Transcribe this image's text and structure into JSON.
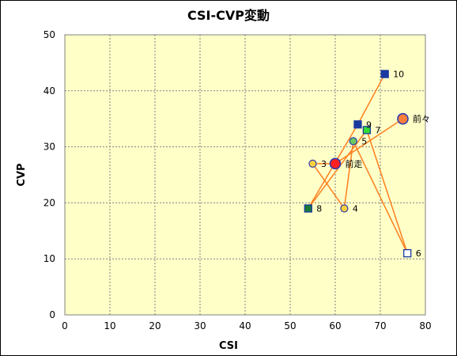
{
  "chart_data": {
    "type": "scatter",
    "title": "CSI-CVP変動",
    "xlabel": "CSI",
    "ylabel": "CVP",
    "xlim": [
      0,
      80
    ],
    "ylim": [
      0,
      50
    ],
    "xticks": [
      0,
      10,
      20,
      30,
      40,
      50,
      60,
      70,
      80
    ],
    "yticks": [
      0,
      10,
      20,
      30,
      40,
      50
    ],
    "grid": true,
    "plot_background": "#ffffc8",
    "line_color": "#ff7f1e",
    "points": [
      {
        "label": "前々",
        "x": 75,
        "y": 35,
        "marker": "circle",
        "fill": "#ff7f3c",
        "stroke": "#2c3cb4",
        "size": "large"
      },
      {
        "label": "前走",
        "x": 60,
        "y": 27,
        "marker": "circle",
        "fill": "#ff2020",
        "stroke": "#2c3cb4",
        "size": "large"
      },
      {
        "label": "3",
        "x": 55,
        "y": 27,
        "marker": "circle",
        "fill": "#ffd23c",
        "stroke": "#2c3cb4",
        "size": "small"
      },
      {
        "label": "4",
        "x": 62,
        "y": 19,
        "marker": "circle",
        "fill": "#ffd23c",
        "stroke": "#2c3cb4",
        "size": "small"
      },
      {
        "label": "5",
        "x": 64,
        "y": 31,
        "marker": "circle",
        "fill": "#6acb5e",
        "stroke": "#2c3cb4",
        "size": "small"
      },
      {
        "label": "6",
        "x": 76,
        "y": 11,
        "marker": "square",
        "fill": "#ffffff",
        "stroke": "#1a3aa0",
        "size": "small"
      },
      {
        "label": "7",
        "x": 67,
        "y": 33,
        "marker": "square",
        "fill": "#33dd33",
        "stroke": "#1a3aa0",
        "size": "small"
      },
      {
        "label": "8",
        "x": 54,
        "y": 19,
        "marker": "square",
        "fill": "#1a7a3a",
        "stroke": "#1a3aa0",
        "size": "small"
      },
      {
        "label": "9",
        "x": 65,
        "y": 34,
        "marker": "square",
        "fill": "#1a3aa0",
        "stroke": "#1a3aa0",
        "size": "small"
      },
      {
        "label": "10",
        "x": 71,
        "y": 43,
        "marker": "square",
        "fill": "#1a3aa0",
        "stroke": "#1a3aa0",
        "size": "small"
      }
    ]
  }
}
